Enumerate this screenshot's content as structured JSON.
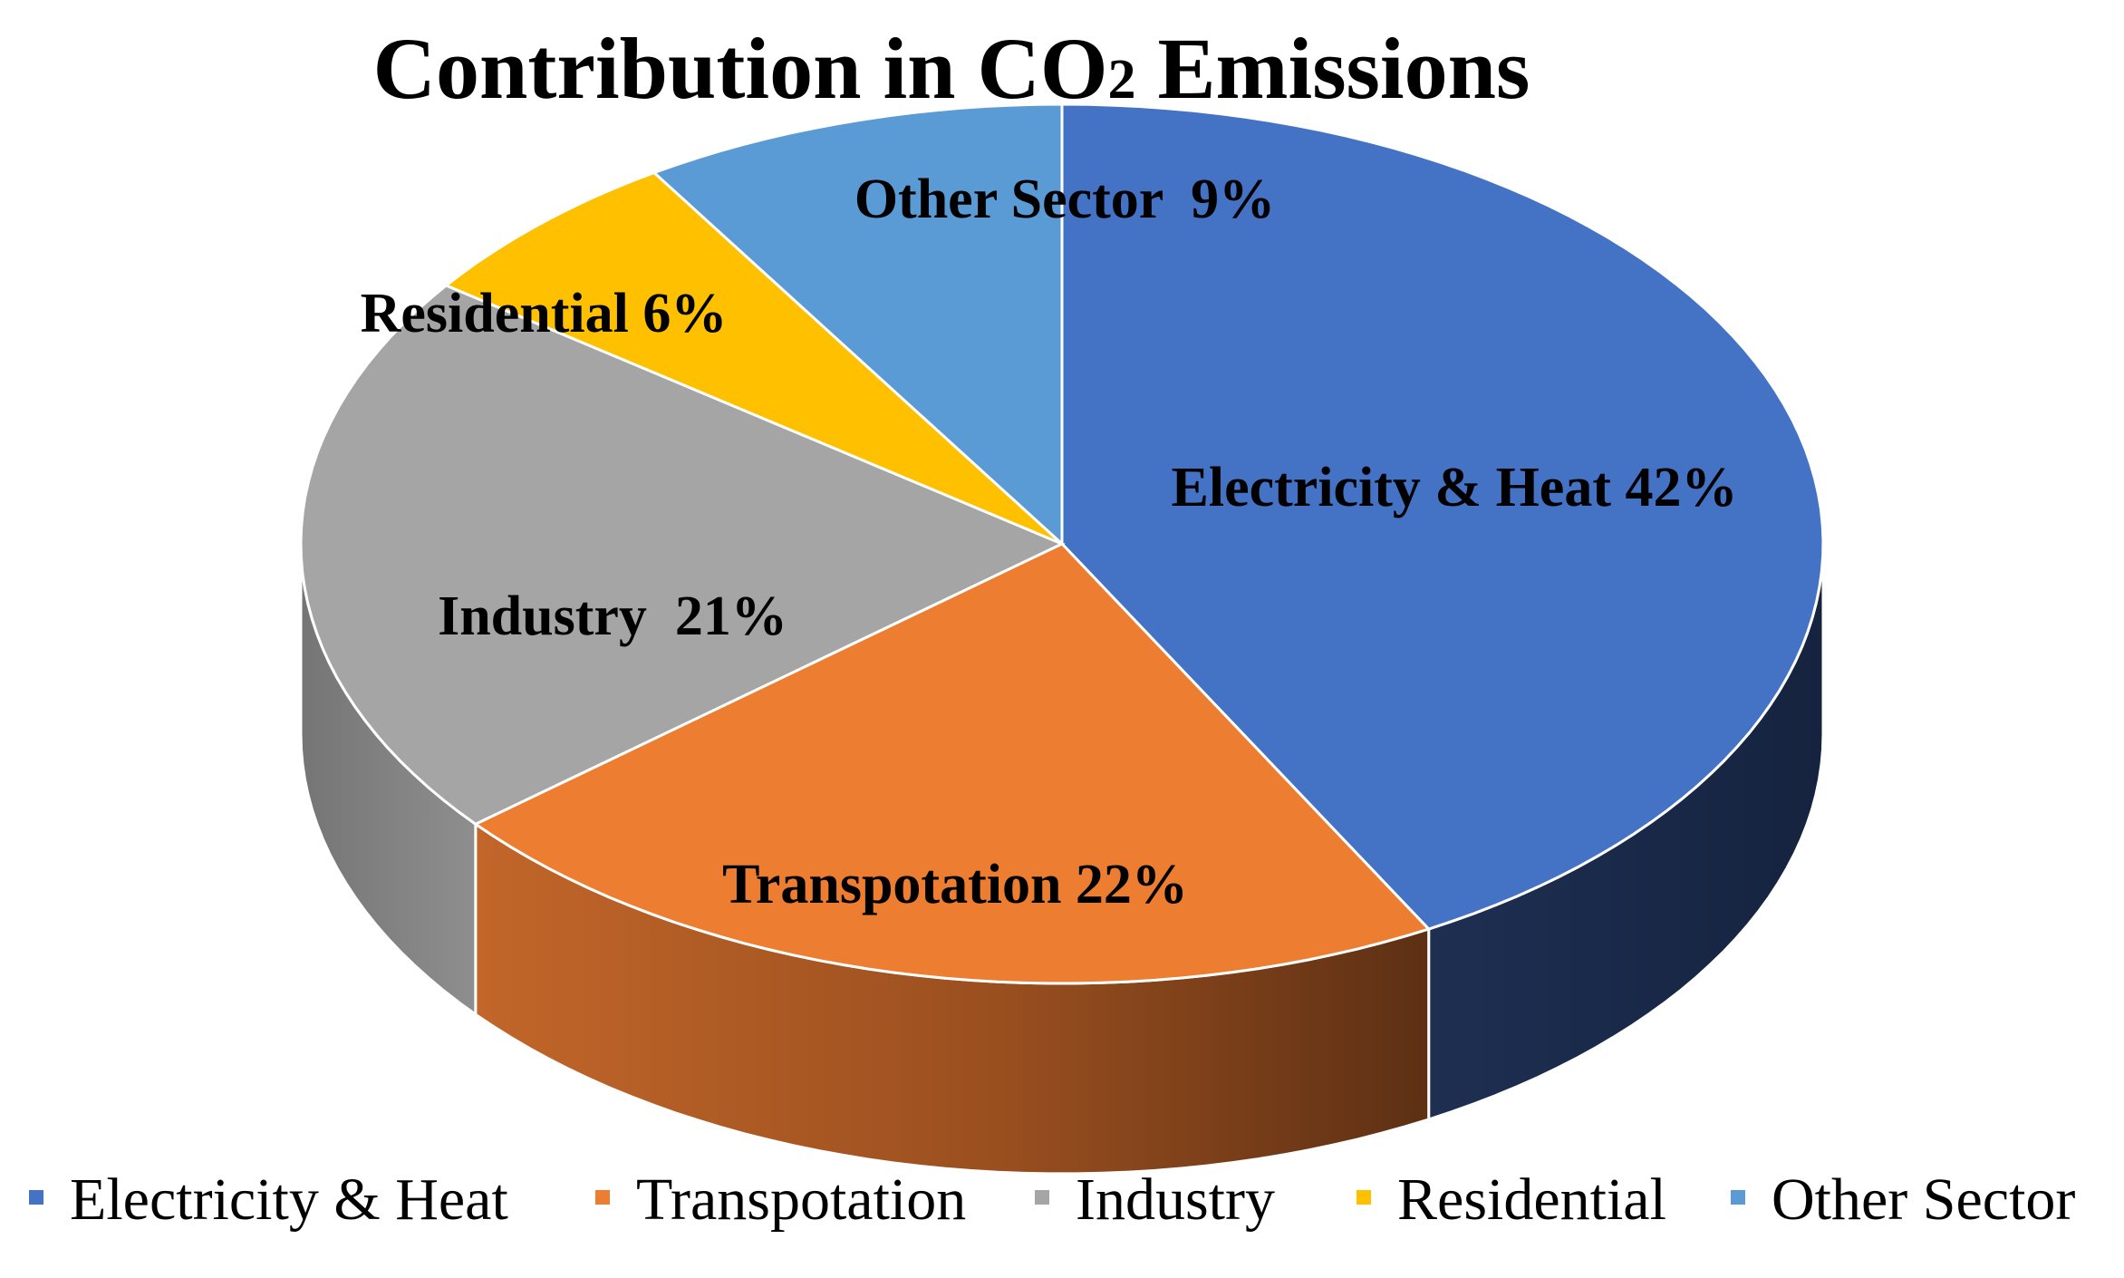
{
  "chart_data": {
    "type": "pie",
    "title": "Contribution in CO2 Emissions",
    "labels": [
      "Electricity & Heat",
      "Transpotation",
      "Industry",
      "Residential",
      "Other Sector"
    ],
    "values": [
      42,
      22,
      21,
      6,
      9
    ],
    "value_unit": "%",
    "data_labels": [
      "Electricity & Heat 42%",
      "Transpotation 22%",
      "Industry  21%",
      "Residential 6%",
      "Other Sector  9%"
    ],
    "colors": [
      "#4472C4",
      "#ED7D31",
      "#A5A5A5",
      "#FFC000",
      "#5B9BD5"
    ],
    "style": "3d",
    "legend": "bottom"
  }
}
